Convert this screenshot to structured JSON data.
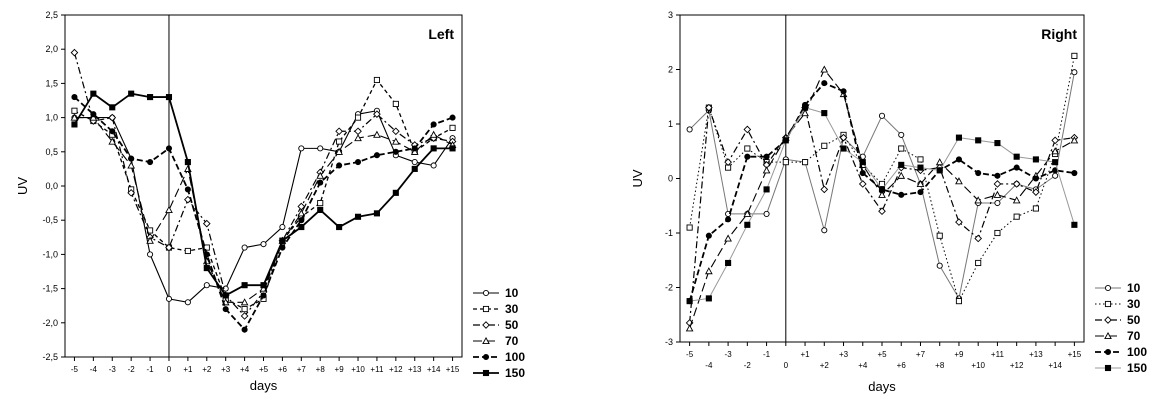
{
  "chart_data": [
    {
      "type": "line",
      "title": "Left",
      "title_color": "#e8261c",
      "xlabel": "days",
      "ylabel": "UV",
      "x": [
        "-5",
        "-4",
        "-3",
        "-2",
        "-1",
        "0",
        "+1",
        "+2",
        "+3",
        "+4",
        "+5",
        "+6",
        "+7",
        "+8",
        "+9",
        "+10",
        "+11",
        "+12",
        "+13",
        "+14",
        "+15"
      ],
      "x_tick_labels": [
        "-5",
        "-4",
        "-3",
        "-2",
        "-1",
        "0",
        "+1",
        "+2",
        "+3",
        "+4",
        "+5",
        "+6",
        "+7",
        "+8",
        "+9",
        "+10",
        "+11",
        "+12",
        "+13",
        "+14",
        "+15"
      ],
      "ylim": [
        -2.5,
        2.5
      ],
      "y_ticks": [
        -2.5,
        -2.0,
        -1.5,
        -1.0,
        -0.5,
        0.0,
        0.5,
        1.0,
        1.5,
        2.0,
        2.5
      ],
      "y_tick_labels": [
        "-2,5",
        "-2,0",
        "-1,5",
        "-1,0",
        "-0,5",
        "0,0",
        "0,5",
        "1,0",
        "1,5",
        "2,0",
        "2,5"
      ],
      "vline_at": "0",
      "grid": false,
      "legend_placement": "right-bottom",
      "series": [
        {
          "name": "10",
          "style": "solid-open-circle",
          "values": [
            1.0,
            1.0,
            1.0,
            0.4,
            -1.0,
            -1.65,
            -1.7,
            -1.45,
            -1.5,
            -0.9,
            -0.85,
            -0.6,
            0.55,
            0.55,
            0.5,
            1.05,
            1.1,
            0.45,
            0.35,
            0.3,
            0.7
          ]
        },
        {
          "name": "30",
          "style": "dash-open-square",
          "values": [
            1.1,
            0.95,
            0.75,
            -0.05,
            -0.65,
            -0.9,
            -0.95,
            -0.9,
            -1.65,
            -1.8,
            -1.65,
            -0.8,
            -0.45,
            -0.25,
            0.65,
            1.0,
            1.55,
            1.2,
            0.5,
            0.7,
            0.85
          ]
        },
        {
          "name": "50",
          "style": "dashdot-open-diamond",
          "values": [
            1.95,
            0.95,
            1.0,
            -0.1,
            -0.75,
            -0.9,
            -0.2,
            -0.55,
            -1.6,
            -1.9,
            -1.55,
            -0.8,
            -0.3,
            0.2,
            0.8,
            0.8,
            1.05,
            0.8,
            0.6,
            0.7,
            0.65
          ]
        },
        {
          "name": "70",
          "style": "longdash-open-triangle",
          "values": [
            1.0,
            1.0,
            0.65,
            0.3,
            -0.8,
            -0.35,
            0.25,
            -1.1,
            -1.7,
            -1.7,
            -1.5,
            -0.8,
            -0.4,
            0.15,
            0.5,
            0.7,
            0.75,
            0.65,
            0.5,
            0.75,
            0.6
          ]
        },
        {
          "name": "100",
          "style": "dash-filled-circle",
          "values": [
            1.3,
            1.05,
            0.8,
            0.4,
            0.35,
            0.55,
            -0.05,
            -1.0,
            -1.8,
            -2.1,
            -1.6,
            -0.9,
            -0.5,
            0.05,
            0.3,
            0.35,
            0.45,
            0.5,
            0.55,
            0.9,
            1.0
          ]
        },
        {
          "name": "150",
          "style": "solid-filled-square",
          "values": [
            0.9,
            1.35,
            1.15,
            1.35,
            1.3,
            1.3,
            0.35,
            -1.2,
            -1.6,
            -1.45,
            -1.45,
            -0.8,
            -0.6,
            -0.35,
            -0.6,
            -0.45,
            -0.4,
            -0.1,
            0.25,
            0.55,
            0.55
          ]
        }
      ]
    },
    {
      "type": "line",
      "title": "Right",
      "title_color": "#1c2bd6",
      "xlabel": "days",
      "ylabel": "UV",
      "x": [
        "-5",
        "-4",
        "-3",
        "-2",
        "-1",
        "0",
        "+1",
        "+2",
        "+3",
        "+4",
        "+5",
        "+6",
        "+7",
        "+8",
        "+9",
        "+10",
        "+11",
        "+12",
        "+13",
        "+14",
        "+15"
      ],
      "x_tick_labels_upper": [
        "-5",
        "-3",
        "-1",
        "+1",
        "+3",
        "+5",
        "+7",
        "+9",
        "+11",
        "+13",
        "+15"
      ],
      "x_tick_labels_lower": [
        "-4",
        "-2",
        "0",
        "+2",
        "+4",
        "+6",
        "+8",
        "+10",
        "+12",
        "+14"
      ],
      "ylim": [
        -3,
        3
      ],
      "y_ticks": [
        -3,
        -2,
        -1,
        0,
        1,
        2,
        3
      ],
      "y_tick_labels": [
        "-3",
        "-2",
        "-1",
        "0",
        "1",
        "2",
        "3"
      ],
      "vline_at": "0",
      "grid": false,
      "legend_placement": "right-bottom",
      "series": [
        {
          "name": "10",
          "style": "solid-gray-open-circle",
          "values": [
            0.9,
            1.25,
            -0.65,
            -0.65,
            -0.65,
            0.35,
            0.3,
            -0.95,
            0.75,
            0.4,
            1.15,
            0.8,
            -0.1,
            -1.6,
            -2.2,
            -0.45,
            -0.45,
            -0.1,
            -0.2,
            0.05,
            1.95
          ]
        },
        {
          "name": "30",
          "style": "dotted-open-square",
          "values": [
            -0.9,
            1.3,
            0.2,
            0.55,
            0.3,
            0.3,
            0.3,
            0.6,
            0.8,
            0.25,
            -0.1,
            0.55,
            0.35,
            -1.05,
            -2.25,
            -1.55,
            -1.0,
            -0.7,
            -0.55,
            0.45,
            2.25
          ]
        },
        {
          "name": "50",
          "style": "dashdot-open-diamond",
          "values": [
            -2.65,
            1.3,
            0.3,
            0.9,
            0.25,
            0.75,
            1.3,
            -0.2,
            0.75,
            -0.1,
            -0.6,
            0.2,
            0.15,
            0.2,
            -0.8,
            -1.1,
            -0.1,
            -0.1,
            -0.25,
            0.7,
            0.75
          ]
        },
        {
          "name": "70",
          "style": "longdash-open-triangle",
          "values": [
            -2.75,
            -1.7,
            -1.1,
            -0.65,
            0.15,
            0.75,
            1.2,
            2.0,
            1.55,
            0.25,
            -0.3,
            0.05,
            -0.1,
            0.3,
            -0.05,
            -0.4,
            -0.3,
            -0.4,
            0.05,
            0.5,
            0.7
          ]
        },
        {
          "name": "100",
          "style": "dash-filled-circle",
          "values": [
            -2.25,
            -1.05,
            -0.75,
            0.4,
            0.4,
            0.7,
            1.35,
            1.75,
            1.6,
            0.1,
            -0.2,
            -0.3,
            -0.25,
            0.15,
            0.35,
            0.1,
            0.05,
            0.2,
            0.0,
            0.15,
            0.1
          ]
        },
        {
          "name": "150",
          "style": "solid-gray-filled-square",
          "values": [
            -2.25,
            -2.2,
            -1.55,
            -0.85,
            -0.2,
            0.7,
            1.3,
            1.2,
            0.55,
            0.3,
            -0.2,
            0.25,
            0.2,
            0.15,
            0.75,
            0.7,
            0.65,
            0.4,
            0.35,
            0.3,
            -0.85
          ]
        }
      ]
    }
  ]
}
